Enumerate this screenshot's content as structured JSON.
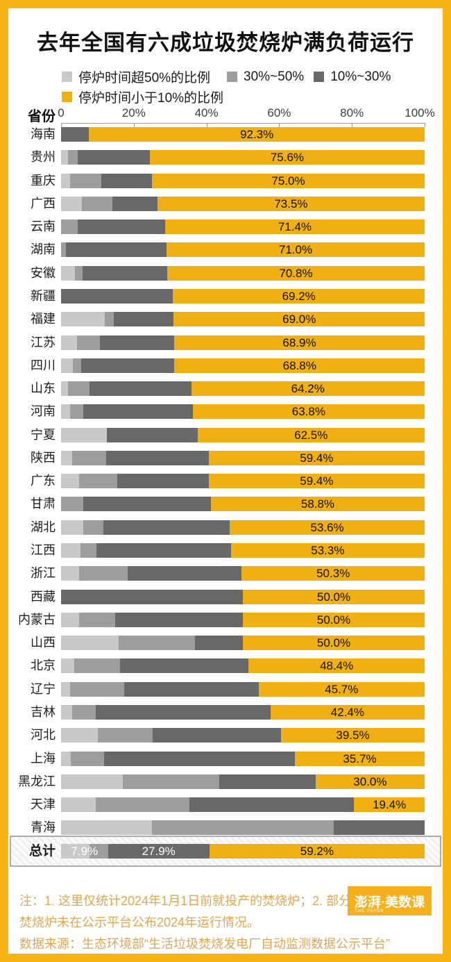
{
  "title": "去年全国有六成垃圾焚烧炉满负荷运行",
  "legend": {
    "items": [
      {
        "label": "停炉时间超50%的比例",
        "key": "over50",
        "color": "#C9C9C9"
      },
      {
        "label": "30%~50%",
        "key": "p30_50",
        "color": "#9D9D9D"
      },
      {
        "label": "10%~30%",
        "key": "p10_30",
        "color": "#686868"
      },
      {
        "label": "停炉时间小于10%的比例",
        "key": "under10",
        "color": "#F0B014"
      }
    ]
  },
  "axis": {
    "col_header": "省份",
    "ticks": [
      "0",
      "20%",
      "40%",
      "60%",
      "80%",
      "100%"
    ],
    "tick_positions": [
      0,
      20,
      40,
      60,
      80,
      100
    ]
  },
  "chart_data": {
    "type": "bar",
    "stacked": true,
    "orientation": "horizontal",
    "xlim": [
      0,
      100
    ],
    "title": "去年全国有六成垃圾焚烧炉满负荷运行",
    "series_order": [
      "停炉时间超50%的比例",
      "30%~50%",
      "10%~30%",
      "停炉时间小于10%的比例"
    ],
    "rows": [
      {
        "name": "海南",
        "v": [
          0,
          0,
          7.7,
          92.3
        ],
        "label": "92.3%"
      },
      {
        "name": "贵州",
        "v": [
          2.0,
          2.6,
          19.8,
          75.6
        ],
        "label": "75.6%"
      },
      {
        "name": "重庆",
        "v": [
          2.4,
          8.6,
          14.0,
          75.0
        ],
        "label": "75.0%"
      },
      {
        "name": "广西",
        "v": [
          5.8,
          8.3,
          12.4,
          73.5
        ],
        "label": "73.5%"
      },
      {
        "name": "云南",
        "v": [
          0,
          4.5,
          24.1,
          71.4
        ],
        "label": "71.4%"
      },
      {
        "name": "湖南",
        "v": [
          0,
          1.3,
          27.7,
          71.0
        ],
        "label": "71.0%"
      },
      {
        "name": "安徽",
        "v": [
          3.8,
          2.1,
          23.3,
          70.8
        ],
        "label": "70.8%"
      },
      {
        "name": "新疆",
        "v": [
          0,
          0,
          30.8,
          69.2
        ],
        "label": "69.2%"
      },
      {
        "name": "福建",
        "v": [
          12.0,
          2.5,
          16.5,
          69.0
        ],
        "label": "69.0%"
      },
      {
        "name": "江苏",
        "v": [
          4.4,
          6.2,
          20.5,
          68.9
        ],
        "label": "68.9%"
      },
      {
        "name": "四川",
        "v": [
          3.2,
          2.4,
          25.6,
          68.8
        ],
        "label": "68.8%"
      },
      {
        "name": "山东",
        "v": [
          2.0,
          5.9,
          27.9,
          64.2
        ],
        "label": "64.2%"
      },
      {
        "name": "河南",
        "v": [
          2.4,
          3.7,
          30.1,
          63.8
        ],
        "label": "63.8%"
      },
      {
        "name": "宁夏",
        "v": [
          12.5,
          0,
          25.0,
          62.5
        ],
        "label": "62.5%"
      },
      {
        "name": "陕西",
        "v": [
          3.1,
          9.3,
          28.2,
          59.4
        ],
        "label": "59.4%"
      },
      {
        "name": "广东",
        "v": [
          5.0,
          10.4,
          25.2,
          59.4
        ],
        "label": "59.4%"
      },
      {
        "name": "甘肃",
        "v": [
          0,
          6.1,
          35.1,
          58.8
        ],
        "label": "58.8%"
      },
      {
        "name": "湖北",
        "v": [
          6.1,
          5.6,
          34.7,
          53.6
        ],
        "label": "53.6%"
      },
      {
        "name": "江西",
        "v": [
          5.4,
          4.3,
          37.0,
          53.3
        ],
        "label": "53.3%"
      },
      {
        "name": "浙江",
        "v": [
          5.0,
          13.4,
          31.3,
          50.3
        ],
        "label": "50.3%"
      },
      {
        "name": "西藏",
        "v": [
          0,
          0,
          50.0,
          50.0
        ],
        "label": "50.0%"
      },
      {
        "name": "内蒙古",
        "v": [
          5.0,
          9.9,
          35.1,
          50.0
        ],
        "label": "50.0%"
      },
      {
        "name": "山西",
        "v": [
          15.8,
          21.0,
          13.2,
          50.0
        ],
        "label": "50.0%"
      },
      {
        "name": "北京",
        "v": [
          3.6,
          12.7,
          35.3,
          48.4
        ],
        "label": "48.4%"
      },
      {
        "name": "辽宁",
        "v": [
          2.5,
          14.8,
          37.0,
          45.7
        ],
        "label": "45.7%"
      },
      {
        "name": "吉林",
        "v": [
          3.1,
          6.4,
          48.1,
          42.4
        ],
        "label": "42.4%"
      },
      {
        "name": "河北",
        "v": [
          10.1,
          15.0,
          35.4,
          39.5
        ],
        "label": "39.5%"
      },
      {
        "name": "上海",
        "v": [
          2.6,
          9.2,
          52.5,
          35.7
        ],
        "label": "35.7%"
      },
      {
        "name": "黑龙江",
        "v": [
          17.0,
          26.6,
          26.4,
          30.0
        ],
        "label": "30.0%"
      },
      {
        "name": "天津",
        "v": [
          9.5,
          25.8,
          45.3,
          19.4
        ],
        "label": "19.4%"
      },
      {
        "name": "青海",
        "v": [
          25.0,
          50.0,
          25.0,
          0
        ],
        "label": null
      },
      {
        "name": "总计",
        "v": [
          7.9,
          5.0,
          27.9,
          59.2
        ],
        "label": "59.2%",
        "total": true,
        "white_labels": [
          "7.9%",
          "27.9%"
        ]
      }
    ]
  },
  "footer": {
    "note_line_1": "注：1. 这里仅统计2024年1月1日前就投产的焚烧炉；2. 部分",
    "note_line_2": "焚烧炉未在公示平台公布2024年运行情况。",
    "source": "数据来源：生态环境部“生活垃圾焚烧发电厂自动监测数据公示平台”"
  },
  "logo": {
    "main": "澎湃·美数课",
    "sub": "THE PAPER"
  },
  "colors": {
    "frame": "#F8B414",
    "bar_yellow": "#F0B014",
    "gray_light": "#C9C9C9",
    "gray_mid": "#9D9D9D",
    "gray_dark": "#686868",
    "note_text": "#E2A54F"
  }
}
